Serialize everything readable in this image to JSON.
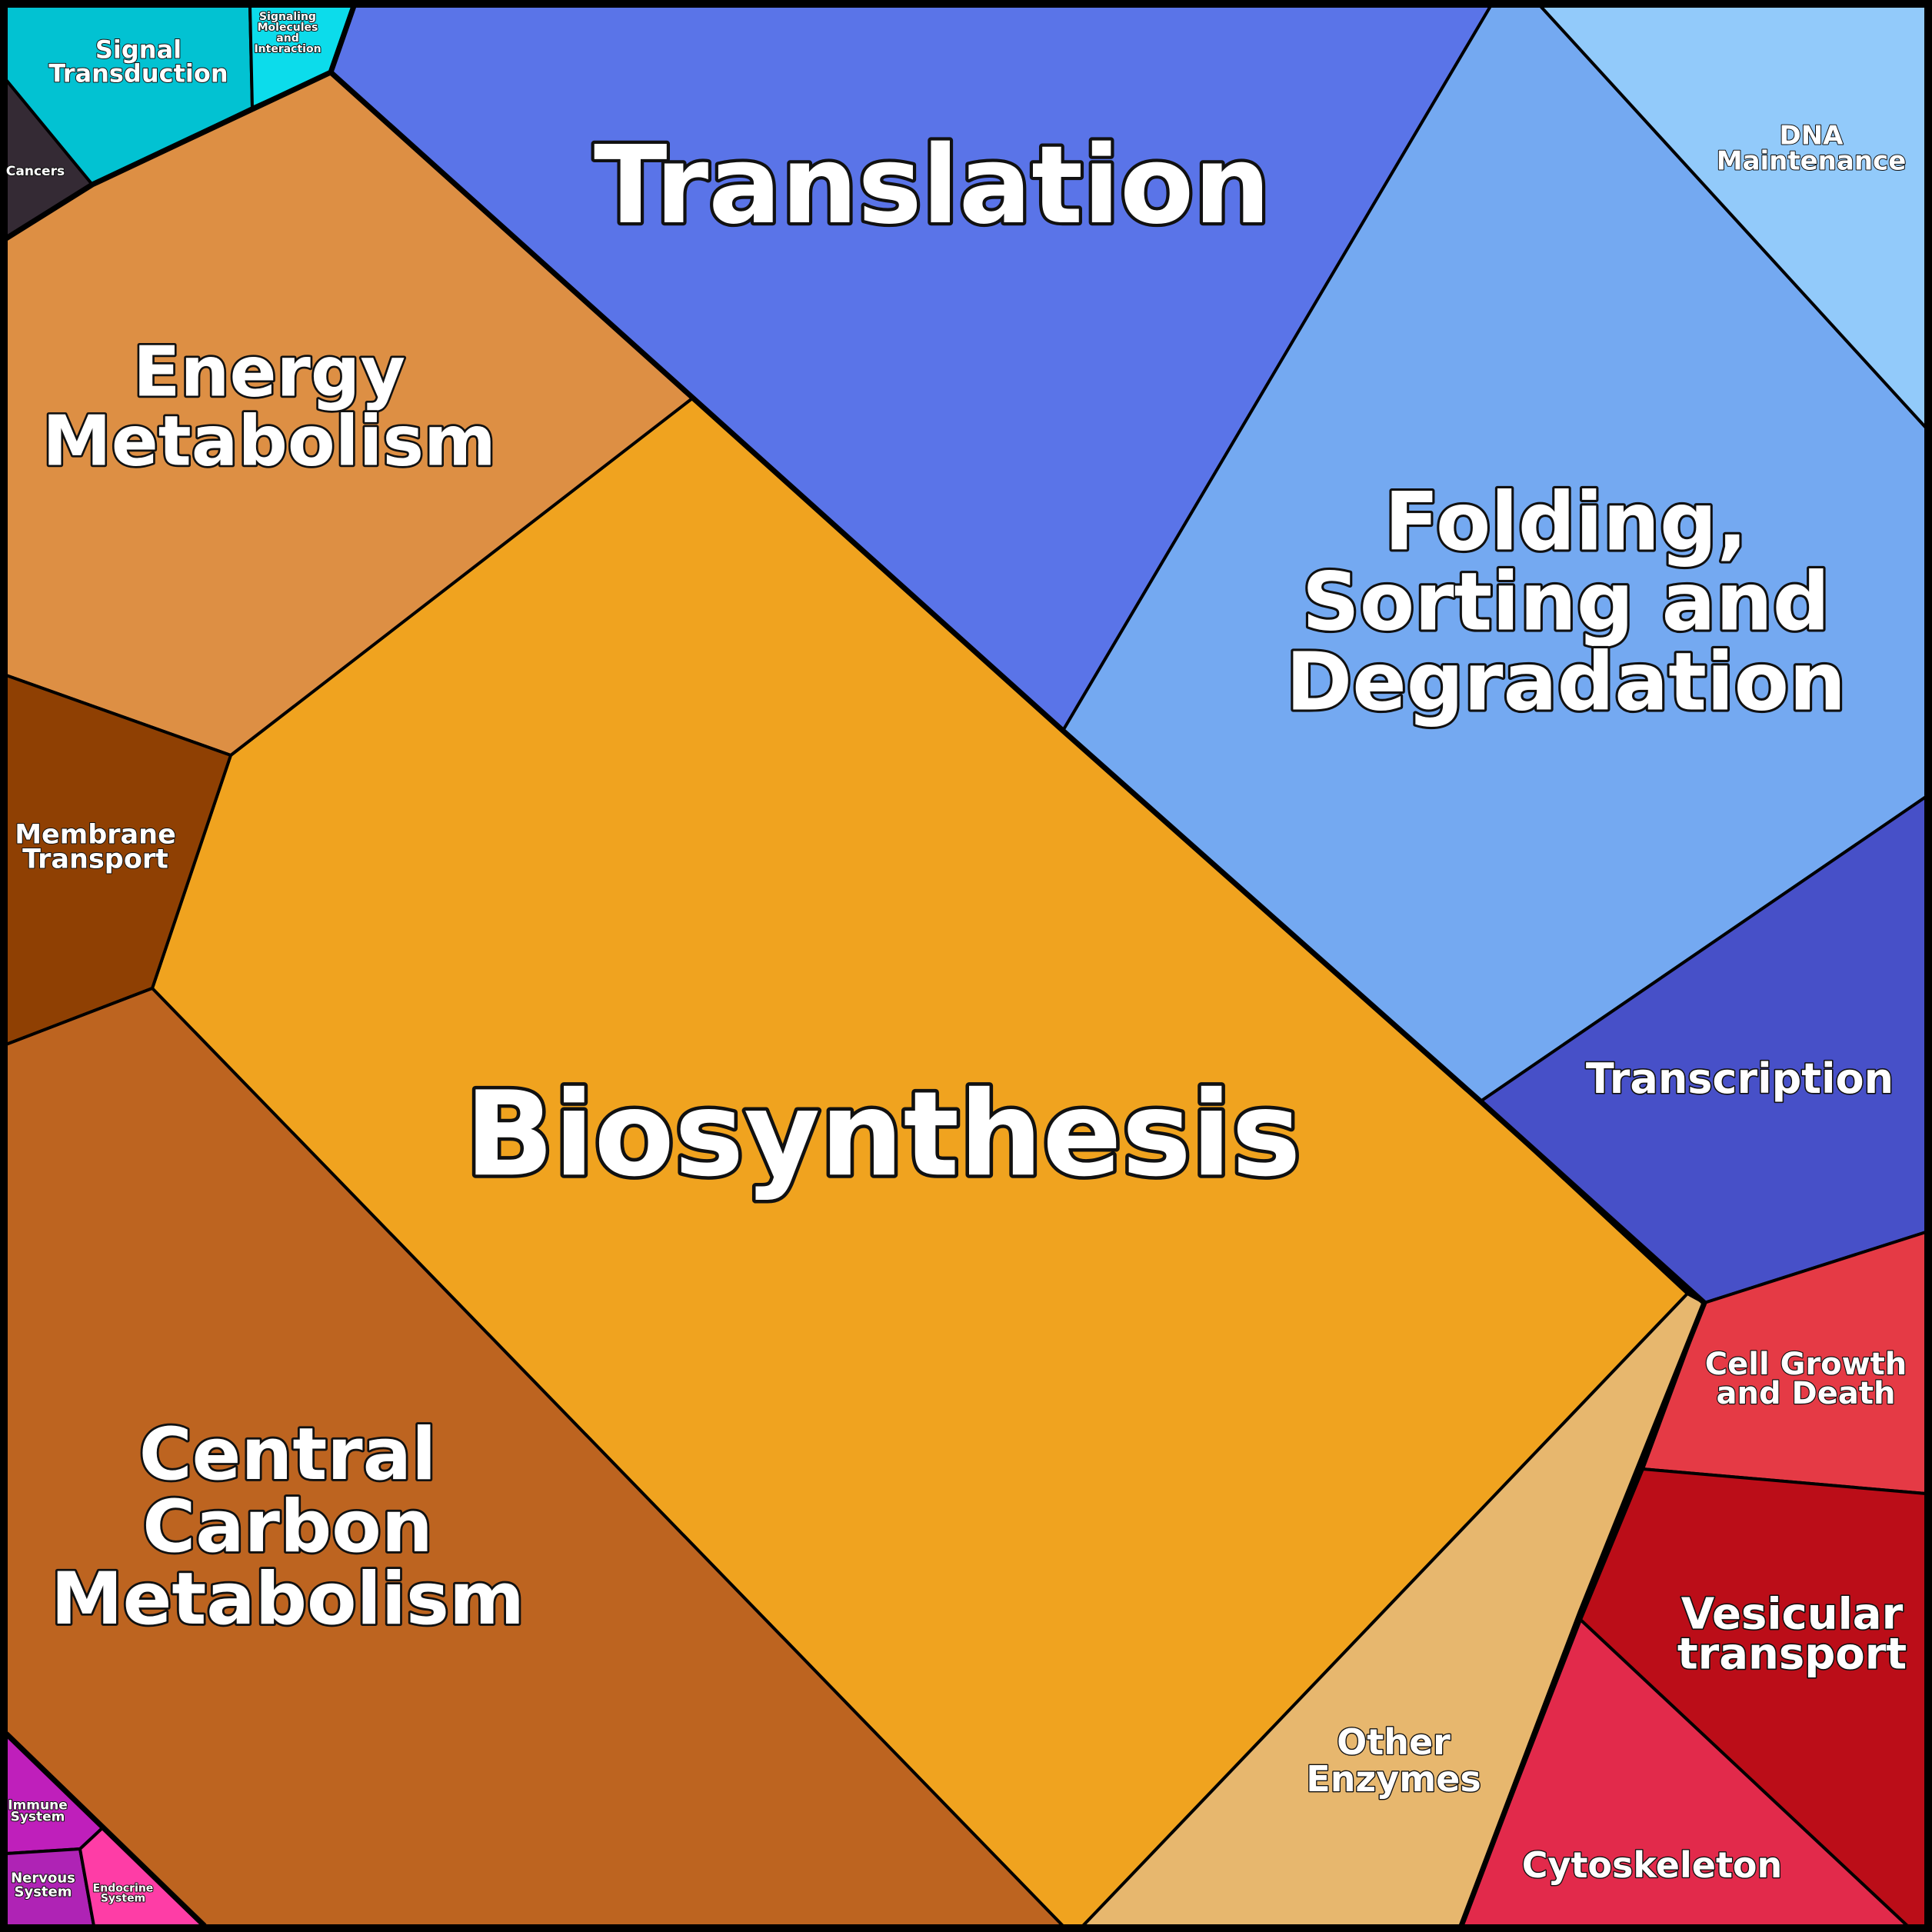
{
  "diagram": {
    "type": "voronoi-treemap",
    "cells": [
      {
        "id": "translation",
        "label": [
          "Translation"
        ],
        "color": "#5A74E8"
      },
      {
        "id": "folding",
        "label": [
          "Folding,",
          "Sorting and",
          "Degradation"
        ],
        "color": "#74A9F1"
      },
      {
        "id": "dna-maintenance",
        "label": [
          "DNA",
          "Maintenance"
        ],
        "color": "#92CAFA"
      },
      {
        "id": "transcription",
        "label": [
          "Transcription"
        ],
        "color": "#4750C8"
      },
      {
        "id": "biosynthesis",
        "label": [
          "Biosynthesis"
        ],
        "color": "#F0A31F"
      },
      {
        "id": "energy-metabolism",
        "label": [
          "Energy",
          "Metabolism"
        ],
        "color": "#DD8F44"
      },
      {
        "id": "membrane-transport",
        "label": [
          "Membrane",
          "Transport"
        ],
        "color": "#8F4003"
      },
      {
        "id": "central-carbon-metabolism",
        "label": [
          "Central",
          "Carbon",
          "Metabolism"
        ],
        "color": "#BD6420"
      },
      {
        "id": "other-enzymes",
        "label": [
          "Other",
          "Enzymes"
        ],
        "color": "#E7B76E"
      },
      {
        "id": "cell-growth",
        "label": [
          "Cell Growth",
          "and Death"
        ],
        "color": "#E53A45"
      },
      {
        "id": "vesicular-transport",
        "label": [
          "Vesicular",
          "transport"
        ],
        "color": "#BB0D18"
      },
      {
        "id": "cytoskeleton",
        "label": [
          "Cytoskeleton"
        ],
        "color": "#E22A4B"
      },
      {
        "id": "signal-transduction",
        "label": [
          "Signal",
          "Transduction"
        ],
        "color": "#02C2D2"
      },
      {
        "id": "signaling-molecules",
        "label": [
          "Signaling",
          "Molecules",
          "and",
          "Interaction"
        ],
        "color": "#0CDCEB"
      },
      {
        "id": "cancers",
        "label": [
          "Cancers"
        ],
        "color": "#342A34"
      },
      {
        "id": "immune-system",
        "label": [
          "Immune",
          "System"
        ],
        "color": "#BF1FBB"
      },
      {
        "id": "nervous-system",
        "label": [
          "Nervous",
          "System"
        ],
        "color": "#AF23B5"
      },
      {
        "id": "endocrine-system",
        "label": [
          "Endocrine",
          "System"
        ],
        "color": "#FE3DA6"
      }
    ]
  }
}
